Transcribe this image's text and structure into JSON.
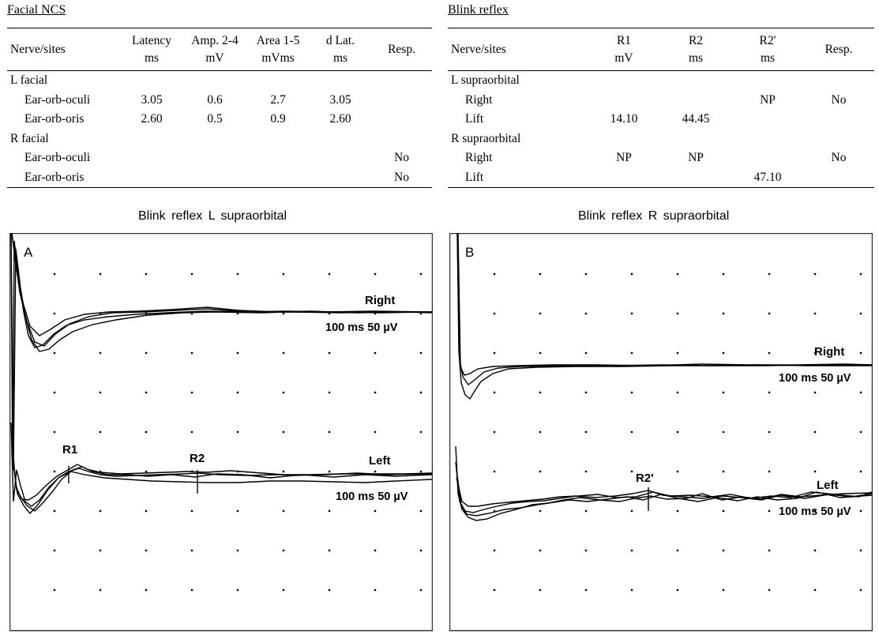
{
  "facial": {
    "title": "Facial NCS",
    "headers": [
      [
        "Nerve/sites"
      ],
      [
        "Latency",
        "ms"
      ],
      [
        "Amp. 2-4",
        "mV"
      ],
      [
        "Area 1-5",
        "mVms"
      ],
      [
        "d Lat.",
        "ms"
      ],
      [
        "Resp."
      ]
    ],
    "rows": [
      {
        "type": "group",
        "cells": [
          "L facial",
          "",
          "",
          "",
          "",
          ""
        ]
      },
      {
        "type": "sub",
        "cells": [
          "Ear-orb-oculi",
          "3.05",
          "0.6",
          "2.7",
          "3.05",
          ""
        ]
      },
      {
        "type": "sub",
        "cells": [
          "Ear-orb-oris",
          "2.60",
          "0.5",
          "0.9",
          "2.60",
          ""
        ]
      },
      {
        "type": "group",
        "cells": [
          "R facial",
          "",
          "",
          "",
          "",
          ""
        ]
      },
      {
        "type": "sub",
        "cells": [
          "Ear-orb-oculi",
          "",
          "",
          "",
          "",
          "No"
        ]
      },
      {
        "type": "sub",
        "cells": [
          "Ear-orb-oris",
          "",
          "",
          "",
          "",
          "No"
        ]
      }
    ]
  },
  "blink": {
    "title": "Blink reflex",
    "headers": [
      [
        "Nerve/sites"
      ],
      [
        "R1",
        "mV"
      ],
      [
        "R2",
        "ms"
      ],
      [
        "R2'",
        "ms"
      ],
      [
        "Resp."
      ]
    ],
    "rows": [
      {
        "type": "group",
        "cells": [
          "L supraorbital",
          "",
          "",
          "",
          ""
        ]
      },
      {
        "type": "sub",
        "cells": [
          "Right",
          "",
          "",
          "NP",
          "No"
        ]
      },
      {
        "type": "sub",
        "cells": [
          "Lift",
          "14.10",
          "44.45",
          "",
          ""
        ]
      },
      {
        "type": "group",
        "cells": [
          "R supraorbital",
          "",
          "",
          "",
          ""
        ]
      },
      {
        "type": "sub",
        "cells": [
          "Right",
          "NP",
          "NP",
          "",
          "No"
        ]
      },
      {
        "type": "sub",
        "cells": [
          "Lift",
          "",
          "",
          "47.10",
          ""
        ]
      }
    ]
  },
  "panels": [
    {
      "title": "Blink reflex L supraorbital",
      "letter": "A",
      "traces": [
        {
          "label": "Right",
          "scale": "100 ms  50 µV"
        },
        {
          "label": "Left",
          "scale": "100 ms  50 µV"
        }
      ],
      "markers": [
        "R1",
        "R2"
      ]
    },
    {
      "title": "Blink reflex R supraorbital",
      "letter": "B",
      "traces": [
        {
          "label": "Right",
          "scale": "100 ms  50 µV"
        },
        {
          "label": "Left",
          "scale": "100 ms  50 µV"
        }
      ],
      "markers": [
        "R2'"
      ]
    }
  ],
  "colors": {
    "trace": "#000000",
    "frame": "#333333",
    "dots": "#000000"
  }
}
